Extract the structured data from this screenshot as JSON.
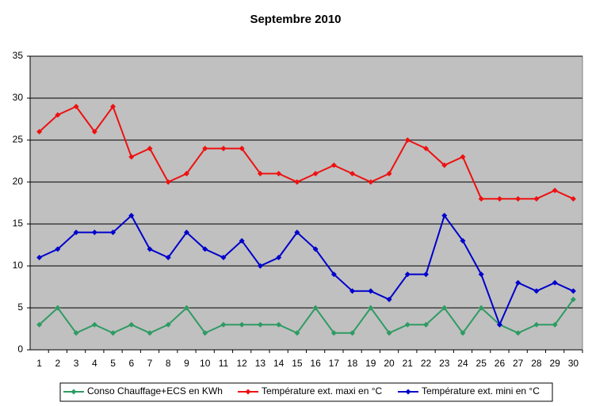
{
  "chart_data": {
    "type": "line",
    "title": "Septembre 2010",
    "categories": [
      "1",
      "2",
      "3",
      "4",
      "5",
      "6",
      "7",
      "8",
      "9",
      "10",
      "11",
      "12",
      "13",
      "14",
      "15",
      "16",
      "17",
      "18",
      "19",
      "20",
      "21",
      "22",
      "23",
      "24",
      "25",
      "26",
      "27",
      "28",
      "29",
      "30"
    ],
    "series": [
      {
        "name": "Conso Chauffage+ECS en KWh",
        "color": "#2e9b63",
        "values": [
          3,
          5,
          2,
          3,
          2,
          3,
          2,
          3,
          5,
          2,
          3,
          3,
          3,
          3,
          2,
          5,
          2,
          2,
          5,
          2,
          3,
          3,
          5,
          2,
          5,
          3,
          2,
          3,
          3,
          6
        ]
      },
      {
        "name": "Température ext. maxi en °C",
        "color": "#ee1111",
        "values": [
          26,
          28,
          29,
          26,
          29,
          23,
          24,
          20,
          21,
          24,
          24,
          24,
          21,
          21,
          20,
          21,
          22,
          21,
          20,
          21,
          25,
          24,
          22,
          23,
          18,
          18,
          18,
          18,
          19,
          18
        ]
      },
      {
        "name": "Température ext. mini en °C",
        "color": "#0000cc",
        "values": [
          11,
          12,
          14,
          14,
          14,
          16,
          12,
          11,
          14,
          12,
          11,
          13,
          10,
          11,
          14,
          12,
          9,
          7,
          7,
          6,
          9,
          9,
          16,
          13,
          9,
          3,
          8,
          7,
          8,
          7
        ]
      }
    ],
    "ylim": [
      0,
      35
    ],
    "yticks": [
      0,
      5,
      10,
      15,
      20,
      25,
      30,
      35
    ],
    "grid": true,
    "legend": "bottom"
  }
}
